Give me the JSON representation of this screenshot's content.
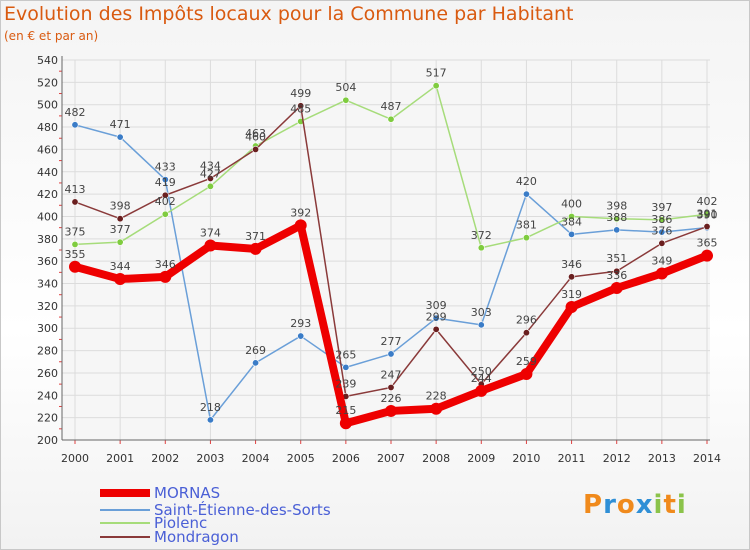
{
  "header": {
    "title": "Evolution des Impôts locaux pour la Commune par Habitant",
    "subtitle": "(en € et par an)"
  },
  "brand": {
    "text": "Proxiti",
    "letters": [
      "P",
      "r",
      "o",
      "x",
      "i",
      "t",
      "i"
    ],
    "letter_colors": [
      "#f08a1c",
      "#2f8fd6",
      "#f08a1c",
      "#2f8fd6",
      "#8bc34a",
      "#f08a1c",
      "#8bc34a"
    ]
  },
  "chart_data": {
    "type": "line",
    "title": "Evolution des Impôts locaux pour la Commune par Habitant",
    "subtitle": "(en € et par an)",
    "x": [
      "2000",
      "2001",
      "2002",
      "2003",
      "2004",
      "2005",
      "2006",
      "2007",
      "2008",
      "2009",
      "2010",
      "2011",
      "2012",
      "2013",
      "2014"
    ],
    "y_ticks": [
      200,
      220,
      240,
      260,
      280,
      300,
      320,
      340,
      360,
      380,
      400,
      420,
      440,
      460,
      480,
      500,
      520,
      540
    ],
    "ylim": [
      200,
      540
    ],
    "grid": true,
    "legend_position": "bottom-left",
    "series": [
      {
        "name": "MORNAS",
        "color": "#ee0000",
        "marker": "#ee0000",
        "emphasis": true,
        "values": [
          355,
          344,
          346,
          374,
          371,
          392,
          215,
          226,
          228,
          244,
          259,
          319,
          336,
          349,
          365
        ],
        "labels": [
          "355",
          "344",
          "346",
          "374",
          "371",
          "392",
          "215",
          "226",
          "228",
          "244",
          "259",
          "319",
          "336",
          "349",
          "365"
        ]
      },
      {
        "name": "Saint-Étienne-des-Sorts",
        "color": "#6a9fd8",
        "marker": "#3a7cc7",
        "values": [
          482,
          471,
          433,
          218,
          269,
          293,
          265,
          277,
          309,
          303,
          420,
          384,
          388,
          386,
          390
        ],
        "labels": [
          "482",
          "471",
          "433",
          "218",
          "269",
          "293",
          "265",
          "277",
          "309",
          "303",
          "420",
          "384",
          "388",
          "386",
          "390"
        ]
      },
      {
        "name": "Piolenc",
        "color": "#a6dc7a",
        "marker": "#7fcc3f",
        "values": [
          375,
          377,
          402,
          427,
          463,
          485,
          504,
          487,
          517,
          372,
          381,
          400,
          398,
          397,
          402
        ],
        "labels": [
          "375",
          "377",
          "402",
          "427",
          "463",
          "485",
          "504",
          "487",
          "517",
          "372",
          "381",
          "400",
          "398",
          "397",
          "402"
        ]
      },
      {
        "name": "Mondragon",
        "color": "#8a3a3a",
        "marker": "#6a1f1f",
        "values": [
          413,
          398,
          419,
          434,
          460,
          499,
          239,
          247,
          299,
          250,
          296,
          346,
          351,
          376,
          391
        ],
        "labels": [
          "413",
          "398",
          "419",
          "434",
          "460",
          "499",
          "239",
          "247",
          "299",
          "250",
          "296",
          "346",
          "351",
          "376",
          "391"
        ]
      }
    ]
  }
}
